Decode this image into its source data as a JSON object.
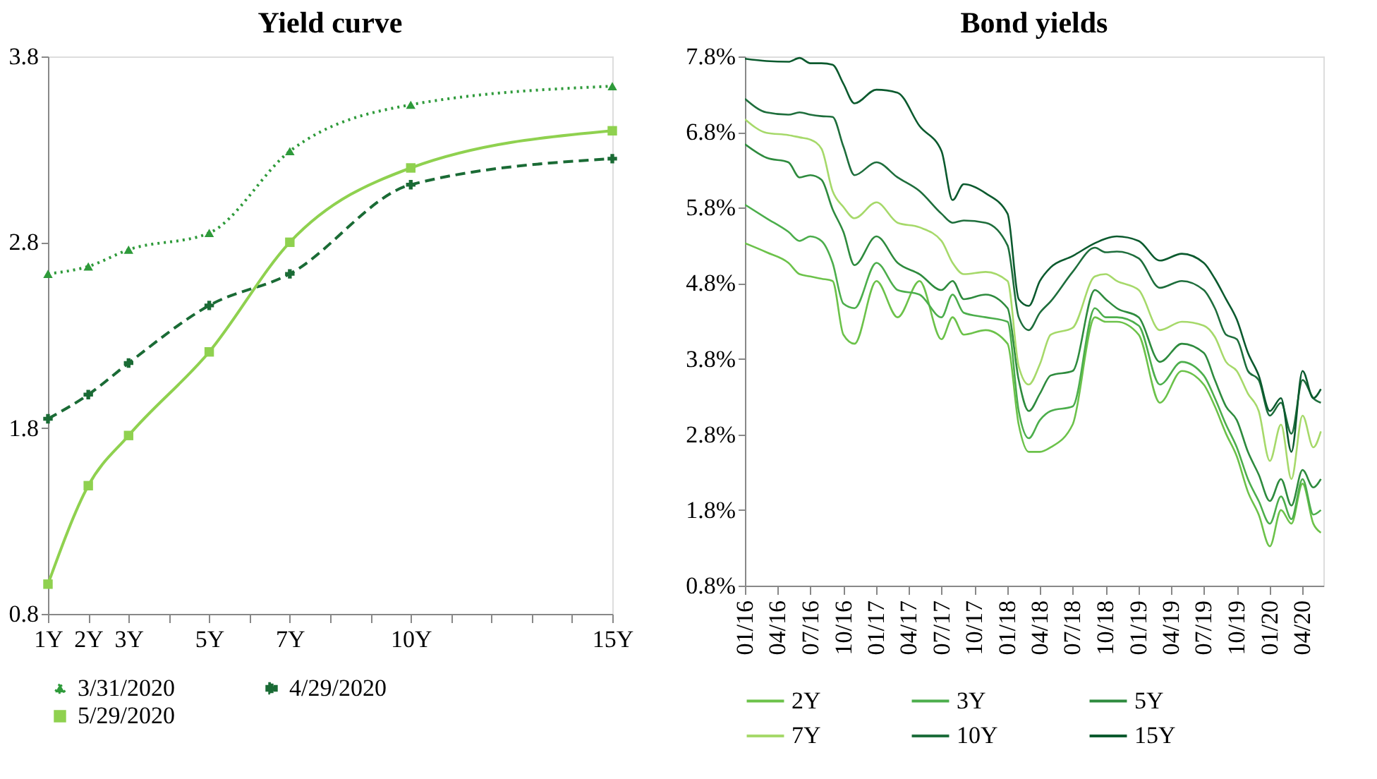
{
  "chart_data": [
    {
      "type": "line",
      "title": "Yield curve",
      "x": [
        1,
        2,
        3,
        5,
        7,
        10,
        15
      ],
      "xlim": [
        1,
        15
      ],
      "xticks": [
        {
          "value": 1,
          "label": "1Y"
        },
        {
          "value": 2,
          "label": "2Y"
        },
        {
          "value": 3,
          "label": "3Y"
        },
        {
          "value": 4,
          "label": null
        },
        {
          "value": 5,
          "label": "5Y"
        },
        {
          "value": 6,
          "label": null
        },
        {
          "value": 7,
          "label": "7Y"
        },
        {
          "value": 8,
          "label": null
        },
        {
          "value": 9,
          "label": null
        },
        {
          "value": 10,
          "label": "10Y"
        },
        {
          "value": 11,
          "label": null
        },
        {
          "value": 12,
          "label": null
        },
        {
          "value": 13,
          "label": null
        },
        {
          "value": 14,
          "label": null
        },
        {
          "value": 15,
          "label": "15Y"
        }
      ],
      "ylim": [
        0.8,
        3.8
      ],
      "yticks": [
        0.8,
        1.8,
        2.8,
        3.8
      ],
      "grid": false,
      "legend": "bottom",
      "series": [
        {
          "name": "3/31/2020",
          "color": "#2e9a3a",
          "line_style": "dotted",
          "marker": "triangle",
          "values": [
            2.63,
            2.67,
            2.76,
            2.85,
            3.29,
            3.54,
            3.64
          ]
        },
        {
          "name": "4/29/2020",
          "color": "#1a6b35",
          "line_style": "dashed",
          "marker": "cross",
          "values": [
            1.85,
            1.98,
            2.15,
            2.46,
            2.63,
            3.11,
            3.25
          ]
        },
        {
          "name": "5/29/2020",
          "color": "#8fd14f",
          "line_style": "solid",
          "marker": "square",
          "values": [
            0.96,
            1.49,
            1.76,
            2.21,
            2.8,
            3.2,
            3.4
          ]
        }
      ]
    },
    {
      "type": "line",
      "title": "Bond yields",
      "x": [
        "2016-01-01",
        "2016-03",
        "2016-05",
        "2016-06",
        "2016-07",
        "2016-08",
        "2016-09",
        "2016-10",
        "2016-11",
        "2017-01",
        "2017-03",
        "2017-05",
        "2017-07",
        "2017-08",
        "2017-09",
        "2017-11",
        "2018-01",
        "2018-02",
        "2018-03",
        "2018-04",
        "2018-05",
        "2018-07",
        "2018-09",
        "2018-10",
        "2018-11",
        "2019-01",
        "2019-03",
        "2019-05",
        "2019-07",
        "2019-08",
        "2019-09",
        "2019-10",
        "2019-11",
        "2019-12",
        "2020-01",
        "2020-02",
        "2020-03",
        "2020-04",
        "2020-05",
        "2020-05-22"
      ],
      "xlim": [
        "2016-01-01",
        "2020-05-29"
      ],
      "xticks": [
        {
          "value": "2016-01",
          "label": "01/16"
        },
        {
          "value": "2016-04",
          "label": "04/16"
        },
        {
          "value": "2016-07",
          "label": "07/16"
        },
        {
          "value": "2016-10",
          "label": "10/16"
        },
        {
          "value": "2017-01",
          "label": "01/17"
        },
        {
          "value": "2017-04",
          "label": "04/17"
        },
        {
          "value": "2017-07",
          "label": "07/17"
        },
        {
          "value": "2017-10",
          "label": "10/17"
        },
        {
          "value": "2018-01",
          "label": "01/18"
        },
        {
          "value": "2018-04",
          "label": "04/18"
        },
        {
          "value": "2018-07",
          "label": "07/18"
        },
        {
          "value": "2018-10",
          "label": "10/18"
        },
        {
          "value": "2019-01",
          "label": "01/19"
        },
        {
          "value": "2019-04",
          "label": "04/19"
        },
        {
          "value": "2019-07",
          "label": "07/19"
        },
        {
          "value": "2019-10",
          "label": "10/19"
        },
        {
          "value": "2020-01",
          "label": "01/20"
        },
        {
          "value": "2020-04",
          "label": "04/20"
        }
      ],
      "ylim": [
        0.8,
        7.8
      ],
      "yticks": [
        {
          "value": 0.8,
          "label": "0.8%"
        },
        {
          "value": 1.8,
          "label": "1.8%"
        },
        {
          "value": 2.8,
          "label": "2.8%"
        },
        {
          "value": 3.8,
          "label": "3.8%"
        },
        {
          "value": 4.8,
          "label": "4.8%"
        },
        {
          "value": 5.8,
          "label": "5.8%"
        },
        {
          "value": 6.8,
          "label": "6.8%"
        },
        {
          "value": 7.8,
          "label": "7.8%"
        }
      ],
      "grid": false,
      "legend": "bottom",
      "series": [
        {
          "name": "2Y",
          "color": "#6cc24a",
          "values": [
            5.33,
            5.21,
            5.07,
            4.92,
            4.89,
            4.86,
            4.83,
            4.12,
            4.0,
            4.83,
            4.35,
            4.83,
            4.06,
            4.35,
            4.12,
            4.18,
            4.0,
            2.93,
            2.57,
            2.57,
            2.63,
            2.93,
            4.35,
            4.29,
            4.29,
            4.12,
            3.22,
            3.64,
            3.46,
            3.17,
            2.81,
            2.51,
            2.04,
            1.74,
            1.32,
            1.8,
            1.62,
            2.15,
            1.62,
            1.5
          ]
        },
        {
          "name": "3Y",
          "color": "#4cae4c",
          "values": [
            5.84,
            5.66,
            5.48,
            5.36,
            5.42,
            5.36,
            5.07,
            4.53,
            4.47,
            5.07,
            4.71,
            4.65,
            4.35,
            4.65,
            4.41,
            4.35,
            4.29,
            3.11,
            2.75,
            2.99,
            3.11,
            3.17,
            4.47,
            4.35,
            4.35,
            4.24,
            3.46,
            3.76,
            3.58,
            3.28,
            2.93,
            2.63,
            2.21,
            1.92,
            1.62,
            1.98,
            1.68,
            2.21,
            1.74,
            1.8
          ]
        },
        {
          "name": "5Y",
          "color": "#2e8b3e",
          "values": [
            6.64,
            6.46,
            6.4,
            6.2,
            6.23,
            6.17,
            5.78,
            5.48,
            5.04,
            5.42,
            5.07,
            4.92,
            4.71,
            4.83,
            4.59,
            4.65,
            4.47,
            3.52,
            3.11,
            3.34,
            3.58,
            3.64,
            4.71,
            4.59,
            4.47,
            4.35,
            3.76,
            4.0,
            3.88,
            3.52,
            3.17,
            2.99,
            2.57,
            2.27,
            1.92,
            2.21,
            1.86,
            2.33,
            2.1,
            2.21
          ]
        },
        {
          "name": "7Y",
          "color": "#a6d96a",
          "values": [
            6.97,
            6.79,
            6.76,
            6.73,
            6.7,
            6.58,
            6.02,
            5.81,
            5.66,
            5.87,
            5.6,
            5.54,
            5.36,
            5.07,
            4.92,
            4.95,
            4.83,
            3.7,
            3.46,
            3.73,
            4.12,
            4.21,
            4.89,
            4.92,
            4.83,
            4.71,
            4.18,
            4.29,
            4.24,
            4.09,
            3.76,
            3.64,
            3.34,
            3.11,
            2.45,
            2.93,
            2.21,
            3.05,
            2.63,
            2.84
          ]
        },
        {
          "name": "10Y",
          "color": "#1e6e3c",
          "values": [
            7.24,
            7.06,
            7.03,
            7.06,
            7.03,
            7.01,
            7.0,
            6.61,
            6.23,
            6.4,
            6.2,
            6.02,
            5.72,
            5.6,
            5.63,
            5.6,
            5.3,
            4.35,
            4.18,
            4.41,
            4.56,
            4.95,
            5.27,
            5.21,
            5.22,
            5.13,
            4.74,
            4.83,
            4.71,
            4.47,
            4.12,
            4.06,
            3.64,
            3.52,
            3.05,
            3.22,
            2.81,
            3.52,
            3.28,
            3.22
          ]
        },
        {
          "name": "15Y",
          "color": "#0b5a2e",
          "values": [
            7.77,
            7.74,
            7.73,
            7.78,
            7.71,
            7.71,
            7.69,
            7.44,
            7.18,
            7.36,
            7.32,
            6.88,
            6.55,
            5.9,
            6.11,
            5.99,
            5.72,
            4.59,
            4.5,
            4.83,
            5.01,
            5.16,
            5.33,
            5.39,
            5.42,
            5.36,
            5.1,
            5.19,
            5.07,
            4.86,
            4.59,
            4.32,
            3.88,
            3.58,
            3.11,
            3.28,
            2.57,
            3.64,
            3.28,
            3.4
          ]
        }
      ]
    }
  ]
}
